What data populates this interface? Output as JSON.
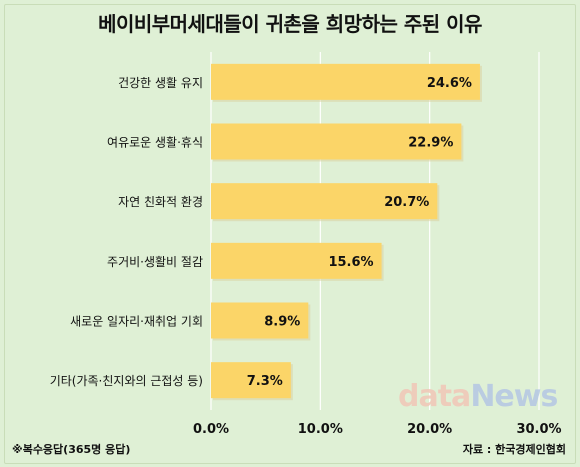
{
  "chart_data": {
    "type": "bar",
    "orientation": "horizontal",
    "title": "베이비부머세대들이 귀촌을 희망하는 주된 이유",
    "categories": [
      "건강한 생활 유지",
      "여유로운 생활·휴식",
      "자연 친화적 환경",
      "주거비·생활비 절감",
      "새로운 일자리·재취업 기회",
      "기타(가족·친지와의 근접성 등)"
    ],
    "values": [
      24.6,
      22.9,
      20.7,
      15.6,
      8.9,
      7.3
    ],
    "value_labels": [
      "24.6%",
      "22.9%",
      "20.7%",
      "15.6%",
      "8.9%",
      "7.3%"
    ],
    "xlim": [
      0,
      30
    ],
    "x_ticks": [
      0,
      10,
      20,
      30
    ],
    "x_tick_labels": [
      "0.0%",
      "10.0%",
      "20.0%",
      "30.0%"
    ],
    "grid": "vertical",
    "bar_color": "#fbd568",
    "grid_color": "#ffffff"
  },
  "footnote": "※복수응답(365명 응답)",
  "source": "자료 : 한국경제인협회",
  "watermark": {
    "part1": "data",
    "part2": "News"
  }
}
